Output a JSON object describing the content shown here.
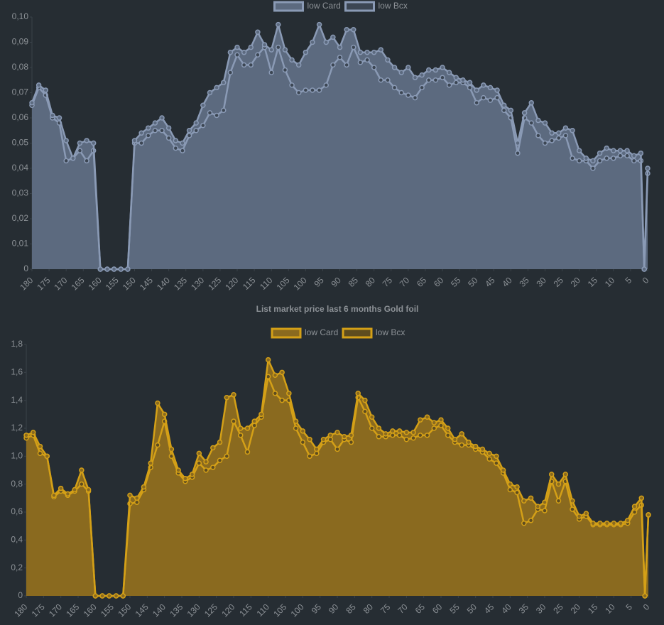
{
  "chart_data": [
    {
      "type": "line",
      "x": [
        180,
        178,
        176,
        174,
        172,
        170,
        168,
        166,
        164,
        162,
        160,
        158,
        156,
        154,
        152,
        150,
        148,
        146,
        144,
        142,
        140,
        138,
        136,
        134,
        132,
        130,
        128,
        126,
        124,
        122,
        120,
        118,
        116,
        114,
        112,
        110,
        108,
        106,
        104,
        102,
        100,
        98,
        96,
        94,
        92,
        90,
        88,
        86,
        84,
        82,
        80,
        78,
        76,
        74,
        72,
        70,
        68,
        66,
        64,
        62,
        60,
        58,
        56,
        54,
        52,
        50,
        48,
        46,
        44,
        42,
        40,
        38,
        36,
        34,
        32,
        30,
        28,
        26,
        24,
        22,
        20,
        18,
        16,
        14,
        12,
        10,
        8,
        6,
        4,
        2,
        1,
        0
      ],
      "series": [
        {
          "name": "low Card",
          "color": "#8a9ab5",
          "fill": "#5c6a7f",
          "values": [
            0.066,
            0.073,
            0.071,
            0.061,
            0.06,
            0.051,
            0.044,
            0.05,
            0.051,
            0.05,
            0,
            0,
            0,
            0,
            0,
            0.051,
            0.054,
            0.056,
            0.058,
            0.06,
            0.056,
            0.051,
            0.05,
            0.055,
            0.058,
            0.065,
            0.07,
            0.072,
            0.074,
            0.086,
            0.088,
            0.086,
            0.088,
            0.094,
            0.089,
            0.087,
            0.097,
            0.087,
            0.083,
            0.081,
            0.086,
            0.09,
            0.097,
            0.09,
            0.092,
            0.088,
            0.095,
            0.095,
            0.086,
            0.086,
            0.086,
            0.087,
            0.083,
            0.08,
            0.078,
            0.08,
            0.076,
            0.077,
            0.079,
            0.079,
            0.08,
            0.078,
            0.076,
            0.075,
            0.074,
            0.071,
            0.073,
            0.072,
            0.071,
            0.065,
            0.063,
            0.05,
            0.062,
            0.066,
            0.059,
            0.058,
            0.054,
            0.054,
            0.056,
            0.055,
            0.047,
            0.044,
            0.043,
            0.046,
            0.048,
            0.047,
            0.047,
            0.047,
            0.045,
            0.046,
            0,
            0.04
          ]
        },
        {
          "name": "low Bcx",
          "color": "#8a9ab5",
          "fill": "#3c4653",
          "values": [
            0.065,
            0.072,
            0.069,
            0.06,
            0.058,
            0.043,
            0.044,
            0.047,
            0.043,
            0.047,
            0,
            0,
            0,
            0,
            0,
            0.05,
            0.05,
            0.053,
            0.055,
            0.055,
            0.052,
            0.048,
            0.047,
            0.053,
            0.055,
            0.057,
            0.062,
            0.061,
            0.063,
            0.078,
            0.085,
            0.081,
            0.081,
            0.085,
            0.088,
            0.078,
            0.088,
            0.079,
            0.073,
            0.07,
            0.071,
            0.071,
            0.071,
            0.073,
            0.081,
            0.084,
            0.081,
            0.088,
            0.082,
            0.083,
            0.08,
            0.075,
            0.075,
            0.072,
            0.07,
            0.069,
            0.068,
            0.072,
            0.075,
            0.075,
            0.076,
            0.073,
            0.074,
            0.074,
            0.072,
            0.066,
            0.068,
            0.067,
            0.068,
            0.063,
            0.06,
            0.046,
            0.06,
            0.058,
            0.053,
            0.05,
            0.051,
            0.052,
            0.053,
            0.044,
            0.043,
            0.043,
            0.04,
            0.043,
            0.044,
            0.044,
            0.045,
            0.045,
            0.043,
            0.043,
            0,
            0.038
          ]
        }
      ],
      "xlim": [
        180,
        0
      ],
      "xticks": [
        180,
        175,
        170,
        165,
        160,
        155,
        150,
        145,
        140,
        135,
        130,
        125,
        120,
        115,
        110,
        105,
        100,
        95,
        90,
        85,
        80,
        75,
        70,
        65,
        60,
        55,
        50,
        45,
        40,
        35,
        30,
        25,
        20,
        15,
        10,
        5,
        0
      ],
      "ylim": [
        0,
        0.1
      ],
      "yticks": [
        0,
        {
          "value": 0.01,
          "label": "0,01"
        },
        {
          "value": 0.02,
          "label": "0,02"
        },
        {
          "value": 0.03,
          "label": "0,03"
        },
        {
          "value": 0.04,
          "label": "0,04"
        },
        {
          "value": 0.05,
          "label": "0,05"
        },
        {
          "value": 0.06,
          "label": "0,06"
        },
        {
          "value": 0.07,
          "label": "0,07"
        },
        {
          "value": 0.08,
          "label": "0,08"
        },
        {
          "value": 0.09,
          "label": "0,09"
        },
        {
          "value": 0.1,
          "label": "0,10"
        }
      ],
      "legend": "top"
    },
    {
      "type": "line",
      "title": "List market price last 6 months Gold foil",
      "x": [
        180,
        178,
        176,
        174,
        172,
        170,
        168,
        166,
        164,
        162,
        160,
        158,
        156,
        154,
        152,
        150,
        148,
        146,
        144,
        142,
        140,
        138,
        136,
        134,
        132,
        130,
        128,
        126,
        124,
        122,
        120,
        118,
        116,
        114,
        112,
        110,
        108,
        106,
        104,
        102,
        100,
        98,
        96,
        94,
        92,
        90,
        88,
        86,
        84,
        82,
        80,
        78,
        76,
        74,
        72,
        70,
        68,
        66,
        64,
        62,
        60,
        58,
        56,
        54,
        52,
        50,
        48,
        46,
        44,
        42,
        40,
        38,
        36,
        34,
        32,
        30,
        28,
        26,
        24,
        22,
        20,
        18,
        16,
        14,
        12,
        10,
        8,
        6,
        4,
        2,
        1,
        0
      ],
      "series": [
        {
          "name": "low Card",
          "color": "#d4a017",
          "fill": "#8a6a1f",
          "values": [
            1.15,
            1.17,
            1.07,
            1.0,
            0.72,
            0.77,
            0.73,
            0.76,
            0.9,
            0.76,
            0,
            0,
            0,
            0,
            0,
            0.72,
            0.7,
            0.78,
            0.95,
            1.38,
            1.3,
            1.05,
            0.9,
            0.84,
            0.87,
            1.02,
            0.96,
            1.06,
            1.1,
            1.42,
            1.44,
            1.2,
            1.2,
            1.25,
            1.3,
            1.69,
            1.58,
            1.6,
            1.45,
            1.25,
            1.18,
            1.12,
            1.05,
            1.12,
            1.15,
            1.17,
            1.14,
            1.15,
            1.45,
            1.4,
            1.28,
            1.2,
            1.16,
            1.18,
            1.18,
            1.17,
            1.17,
            1.26,
            1.28,
            1.24,
            1.26,
            1.2,
            1.12,
            1.16,
            1.1,
            1.07,
            1.05,
            1.02,
            1.0,
            0.9,
            0.8,
            0.78,
            0.68,
            0.7,
            0.64,
            0.67,
            0.87,
            0.8,
            0.87,
            0.68,
            0.57,
            0.59,
            0.52,
            0.52,
            0.52,
            0.52,
            0.52,
            0.54,
            0.64,
            0.7,
            0,
            0.58
          ]
        },
        {
          "name": "low Bcx",
          "color": "#d4a017",
          "fill": "#5e4c1f",
          "values": [
            1.13,
            1.15,
            1.02,
            1.0,
            0.71,
            0.75,
            0.72,
            0.75,
            0.8,
            0.75,
            0,
            0,
            0,
            0,
            0,
            0.66,
            0.67,
            0.76,
            0.92,
            1.08,
            1.25,
            1.0,
            0.88,
            0.82,
            0.85,
            0.95,
            0.9,
            0.92,
            0.97,
            1.0,
            1.25,
            1.15,
            1.03,
            1.22,
            1.28,
            1.57,
            1.45,
            1.4,
            1.4,
            1.2,
            1.1,
            1.0,
            1.02,
            1.1,
            1.12,
            1.05,
            1.12,
            1.1,
            1.42,
            1.32,
            1.2,
            1.14,
            1.14,
            1.15,
            1.15,
            1.12,
            1.13,
            1.15,
            1.15,
            1.2,
            1.22,
            1.15,
            1.1,
            1.08,
            1.08,
            1.05,
            1.03,
            0.98,
            0.95,
            0.88,
            0.76,
            0.74,
            0.52,
            0.54,
            0.62,
            0.61,
            0.82,
            0.68,
            0.82,
            0.62,
            0.55,
            0.57,
            0.51,
            0.51,
            0.51,
            0.51,
            0.51,
            0.52,
            0.6,
            0.65,
            0,
            0.58
          ]
        }
      ],
      "xlim": [
        180,
        0
      ],
      "xticks": [
        180,
        175,
        170,
        165,
        160,
        155,
        150,
        145,
        140,
        135,
        130,
        125,
        120,
        115,
        110,
        105,
        100,
        95,
        90,
        85,
        80,
        75,
        70,
        65,
        60,
        55,
        50,
        45,
        40,
        35,
        30,
        25,
        20,
        15,
        10,
        5,
        0
      ],
      "ylim": [
        0,
        1.8
      ],
      "yticks": [
        0,
        {
          "value": 0.2,
          "label": "0,2"
        },
        {
          "value": 0.4,
          "label": "0,4"
        },
        {
          "value": 0.6,
          "label": "0,6"
        },
        {
          "value": 0.8,
          "label": "0,8"
        },
        {
          "value": 1,
          "label": "1,0"
        },
        {
          "value": 1.2,
          "label": "1,2"
        },
        {
          "value": 1.4,
          "label": "1,4"
        },
        {
          "value": 1.6,
          "label": "1,6"
        },
        {
          "value": 1.8,
          "label": "1,8"
        }
      ],
      "legend": "top"
    }
  ]
}
